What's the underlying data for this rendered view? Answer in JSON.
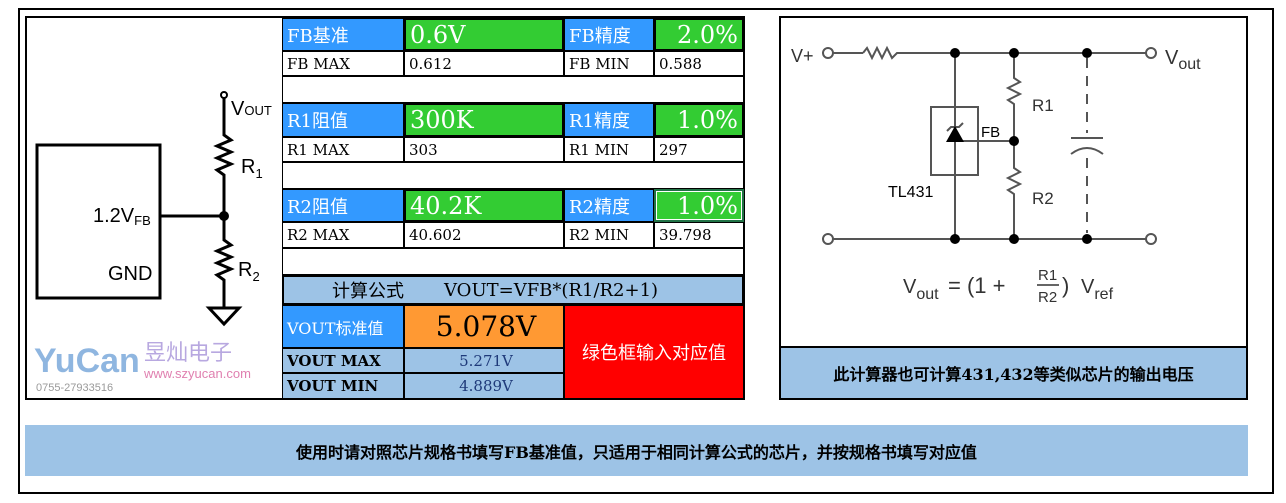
{
  "circuit_left": {
    "vout": "V",
    "vout_sub": "OUT",
    "r1": "R",
    "r1_sub": "1",
    "r2": "R",
    "r2_sub": "2",
    "fb": "1.2V",
    "fb_sub": "FB",
    "gnd": "GND"
  },
  "table": {
    "fb": {
      "label": "FB基准",
      "value": "0.6V",
      "prec_label": "FB精度",
      "prec": "2.0%",
      "max_label": "FB MAX",
      "max": "0.612",
      "min_label": "FB MIN",
      "min": "0.588"
    },
    "r1": {
      "label": "R1阻值",
      "value": "300K",
      "prec_label": "R1精度",
      "prec": "1.0%",
      "max_label": "R1 MAX",
      "max": "303",
      "min_label": "R1 MIN",
      "min": "297"
    },
    "r2": {
      "label": "R2阻值",
      "value": "40.2K",
      "prec_label": "R2精度",
      "prec": "1.0%",
      "max_label": "R2 MAX",
      "max": "40.602",
      "min_label": "R2 MIN",
      "min": "39.798"
    },
    "formula_label": "计算公式",
    "formula": "VOUT=VFB*(R1/R2+1)",
    "vout_label": "VOUT标准值",
    "vout": "5.078V",
    "vmax_label": "VOUT MAX",
    "vmax": "5.271V",
    "vmin_label": "VOUT MIN",
    "vmin": "4.889V",
    "note": "绿色框输入对应值"
  },
  "watermark": {
    "brand": "YuCan",
    "cn": "昱灿电子",
    "url": "www.szyucan.com",
    "phone": "0755-27933516"
  },
  "circuit_right": {
    "vplus": "V+",
    "vout": "V",
    "vout_sub": "out",
    "r1": "R1",
    "r2": "R2",
    "fb": "FB",
    "chip": "TL431",
    "eq_v": "V",
    "eq_out": "out",
    "eq_mid": "= (1 +",
    "eq_r1": "R1",
    "eq_r2": "R2",
    "eq_end": ")",
    "eq_vref": "V",
    "eq_ref": "ref"
  },
  "right_caption": "此计算器也可计算431,432等类似芯片的输出电压",
  "banner": "使用时请对照芯片规格书填写FB基准值，只适用于相同计算公式的芯片，并按规格书填写对应值",
  "colors": {
    "input_green": "#33cc33",
    "label_blue": "#3399ff",
    "result_orange": "#ff9933",
    "note_red": "#ff0000",
    "panel_blue": "#9dc3e6"
  }
}
